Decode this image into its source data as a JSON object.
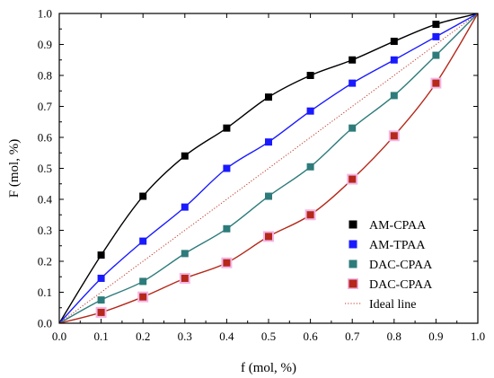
{
  "chart_data": {
    "type": "scatter",
    "title": "",
    "xlabel": "f (mol, %)",
    "ylabel": "F (mol, %)",
    "xlim": [
      0.0,
      1.0
    ],
    "ylim": [
      0.0,
      1.0
    ],
    "x_ticks": [
      "0.0",
      "0.1",
      "0.2",
      "0.3",
      "0.4",
      "0.5",
      "0.6",
      "0.7",
      "0.8",
      "0.9",
      "1.0"
    ],
    "y_ticks": [
      "0.0",
      "0.1",
      "0.2",
      "0.3",
      "0.4",
      "0.5",
      "0.6",
      "0.7",
      "0.8",
      "0.9",
      "1.0"
    ],
    "grid": false,
    "legend_position": "bottom-right",
    "x": [
      0.1,
      0.2,
      0.3,
      0.4,
      0.5,
      0.6,
      0.7,
      0.8,
      0.9
    ],
    "series": [
      {
        "name": "AM-CPAA",
        "color": "#000000",
        "marker": "square",
        "fit": "line",
        "values": [
          0.22,
          0.41,
          0.54,
          0.63,
          0.73,
          0.8,
          0.85,
          0.91,
          0.965
        ]
      },
      {
        "name": "AM-TPAA",
        "color": "#1a1aff",
        "marker": "square",
        "fit": "line",
        "values": [
          0.145,
          0.265,
          0.375,
          0.5,
          0.585,
          0.685,
          0.775,
          0.85,
          0.925
        ]
      },
      {
        "name": "DAC-CPAA",
        "color": "#2e7b7b",
        "marker": "square",
        "fit": "line",
        "values": [
          0.075,
          0.135,
          0.225,
          0.305,
          0.41,
          0.505,
          0.63,
          0.735,
          0.865
        ]
      },
      {
        "name": "DAC-CPAA",
        "color": "#b5281a",
        "marker": "square-halo",
        "fit": "line",
        "values": [
          0.035,
          0.085,
          0.145,
          0.195,
          0.28,
          0.35,
          0.465,
          0.605,
          0.775
        ]
      }
    ],
    "ideal_line": {
      "name": "Ideal line",
      "color": "#c0392b",
      "style": "dotted"
    }
  }
}
